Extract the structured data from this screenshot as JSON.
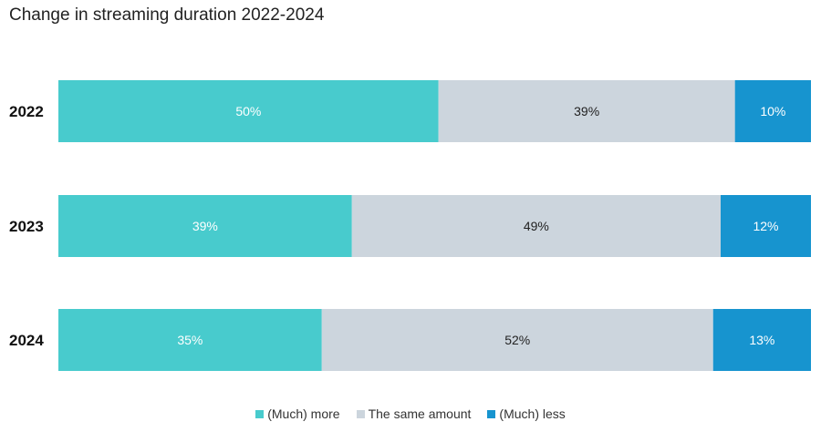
{
  "chart_data": {
    "type": "bar",
    "orientation": "horizontal",
    "stacked": true,
    "title": "Change in streaming duration 2022-2024",
    "categories": [
      "2022",
      "2023",
      "2024"
    ],
    "series": [
      {
        "name": "(Much) more",
        "values": [
          50,
          39,
          35
        ],
        "labels": [
          "50%",
          "39%",
          "35%"
        ],
        "color": "#48cbcd",
        "label_color": "#ffffff"
      },
      {
        "name": "The same amount",
        "values": [
          39,
          49,
          52
        ],
        "labels": [
          "39%",
          "49%",
          "52%"
        ],
        "color": "#ccd5dd",
        "label_color": "#222222"
      },
      {
        "name": "(Much) less",
        "values": [
          10,
          12,
          13
        ],
        "labels": [
          "10%",
          "12%",
          "13%"
        ],
        "color": "#1794cf",
        "label_color": "#ffffff"
      }
    ],
    "legend_position": "bottom",
    "grid": false
  }
}
